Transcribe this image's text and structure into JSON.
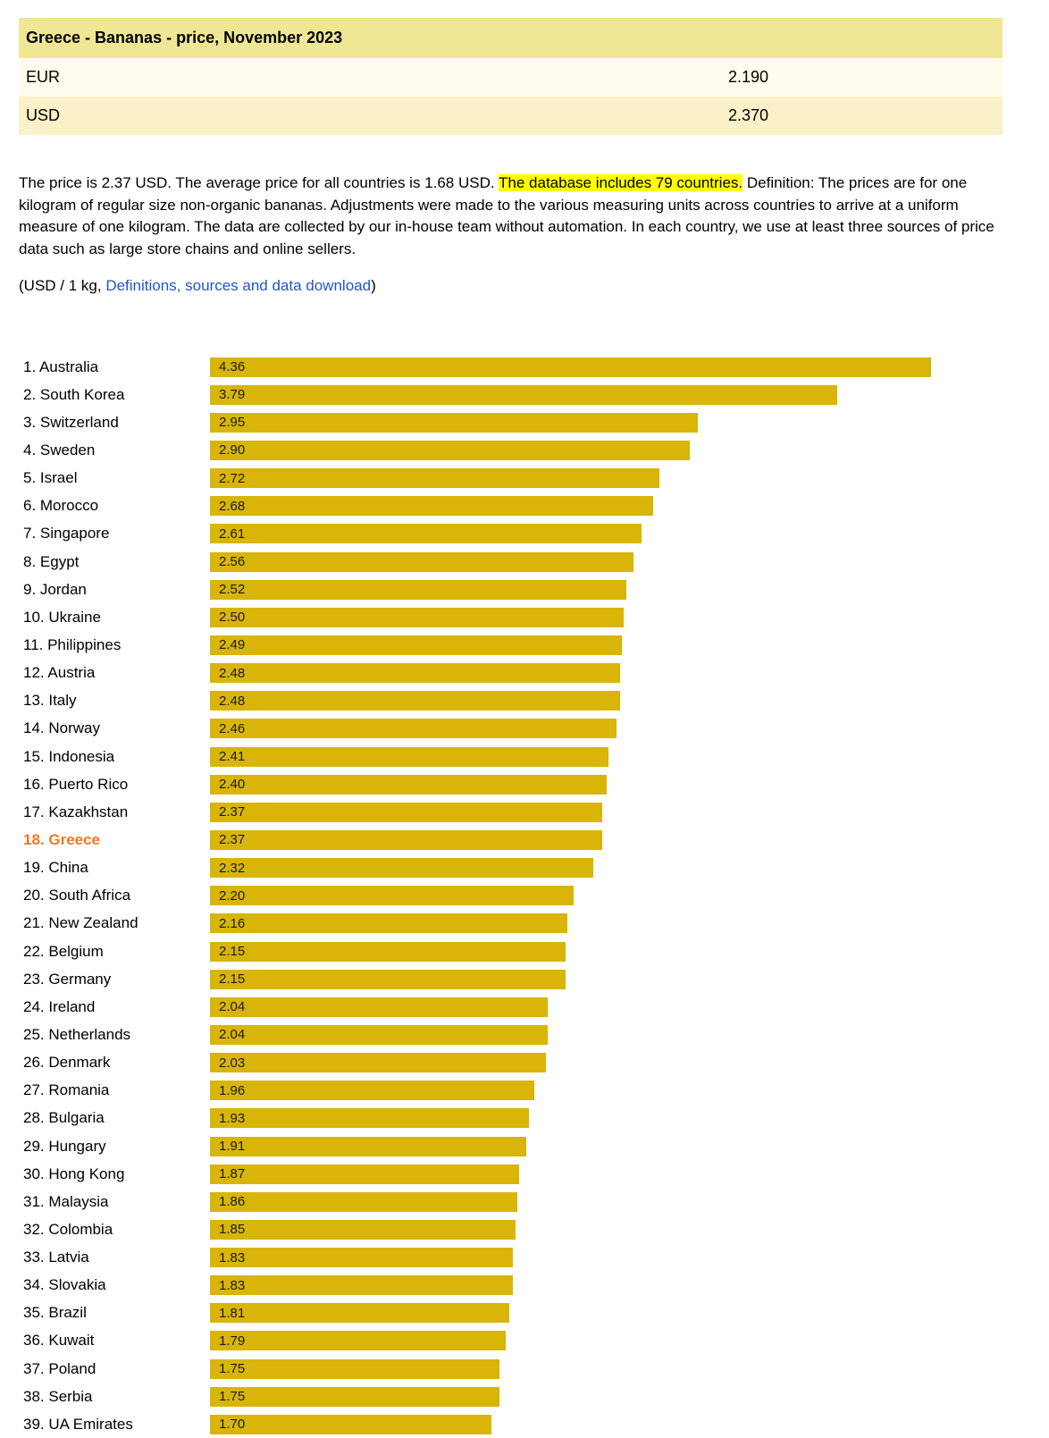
{
  "price_table": {
    "title": "Greece - Bananas - price, November 2023",
    "rows": [
      {
        "currency": "EUR",
        "value": "2.190"
      },
      {
        "currency": "USD",
        "value": "2.370"
      }
    ]
  },
  "description": {
    "part1": "The price is 2.37 USD. The average price for all countries is 1.68 USD. ",
    "highlighted": "The database includes 79 countries.",
    "part2": " Definition: The prices are for one kilogram of regular size non-organic bananas. Adjustments were made to the various measuring units across countries to arrive at a uniform measure of one kilogram. The data are collected by our in-house team without automation. In each country, we use at least three sources of price data such as large store chains and online sellers."
  },
  "unit_line": {
    "prefix": "(USD / 1 kg, ",
    "link_text": "Definitions, sources and data download",
    "suffix": ")"
  },
  "colors": {
    "table_title_bg": "#F0E795",
    "table_row_eur_bg": "#FEFBEC",
    "table_row_usd_bg": "#FAF1C8",
    "highlight_text_bg": "#FFFF00",
    "link": "#2255CC"
  },
  "chart_data": {
    "type": "bar",
    "orientation": "horizontal",
    "unit": "USD / 1 kg",
    "xlim": [
      0,
      4.36
    ],
    "bar_color": "#D8B508",
    "highlight_index": 17,
    "highlight_color": "#EE7722",
    "categories": [
      "1. Australia",
      "2. South Korea",
      "3. Switzerland",
      "4. Sweden",
      "5. Israel",
      "6. Morocco",
      "7. Singapore",
      "8. Egypt",
      "9. Jordan",
      "10. Ukraine",
      "11. Philippines",
      "12. Austria",
      "13. Italy",
      "14. Norway",
      "15. Indonesia",
      "16. Puerto Rico",
      "17. Kazakhstan",
      "18. Greece",
      "19. China",
      "20. South Africa",
      "21. New Zealand",
      "22. Belgium",
      "23. Germany",
      "24. Ireland",
      "25. Netherlands",
      "26. Denmark",
      "27. Romania",
      "28. Bulgaria",
      "29. Hungary",
      "30. Hong Kong",
      "31. Malaysia",
      "32. Colombia",
      "33. Latvia",
      "34. Slovakia",
      "35. Brazil",
      "36. Kuwait",
      "37. Poland",
      "38. Serbia",
      "39. UA Emirates"
    ],
    "values": [
      4.36,
      3.79,
      2.95,
      2.9,
      2.72,
      2.68,
      2.61,
      2.56,
      2.52,
      2.5,
      2.49,
      2.48,
      2.48,
      2.46,
      2.41,
      2.4,
      2.37,
      2.37,
      2.32,
      2.2,
      2.16,
      2.15,
      2.15,
      2.04,
      2.04,
      2.03,
      1.96,
      1.93,
      1.91,
      1.87,
      1.86,
      1.85,
      1.83,
      1.83,
      1.81,
      1.79,
      1.75,
      1.75,
      1.7
    ]
  }
}
